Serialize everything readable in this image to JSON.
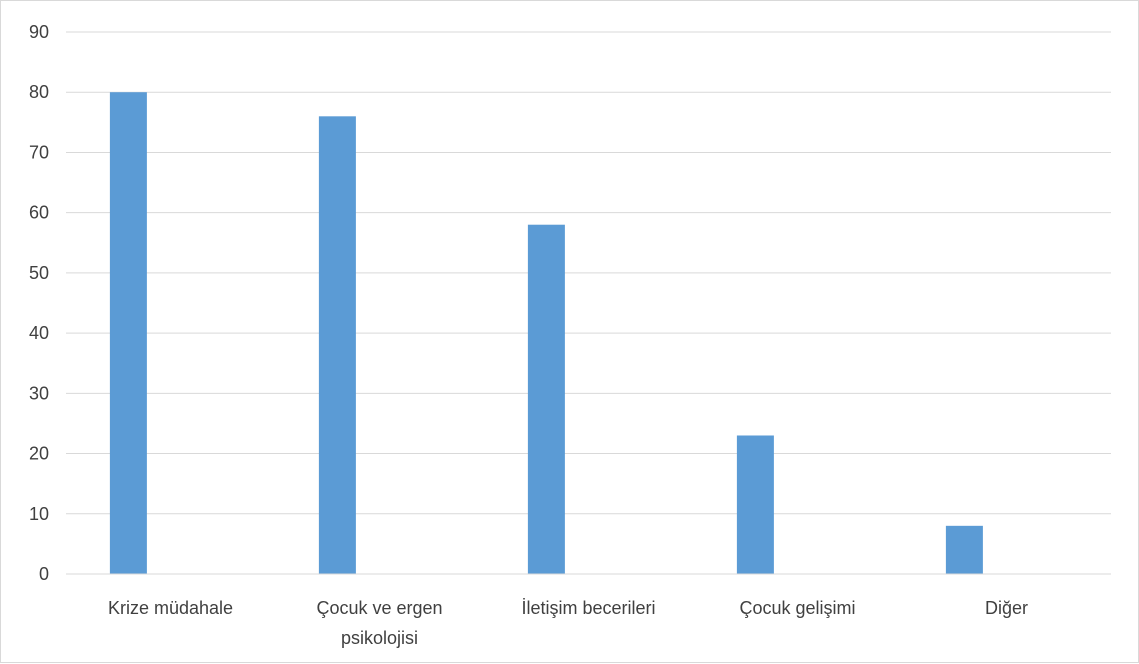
{
  "chart_data": {
    "type": "bar",
    "categories": [
      [
        "Krize müdahale"
      ],
      [
        "Çocuk ve ergen",
        "psikolojisi"
      ],
      [
        "İletişim becerileri"
      ],
      [
        "Çocuk gelişimi"
      ],
      [
        "Diğer"
      ]
    ],
    "values": [
      80,
      76,
      58,
      23,
      8
    ],
    "ylim": [
      0,
      90
    ],
    "yticks": [
      0,
      10,
      20,
      30,
      40,
      50,
      60,
      70,
      80,
      90
    ],
    "grid": true,
    "legend": "none",
    "colors": {
      "bar": "#5b9bd5",
      "grid": "#d9d9d9",
      "axis": "#d9d9d9",
      "text": "#404040",
      "frame_border": "#d9d9d9"
    }
  }
}
